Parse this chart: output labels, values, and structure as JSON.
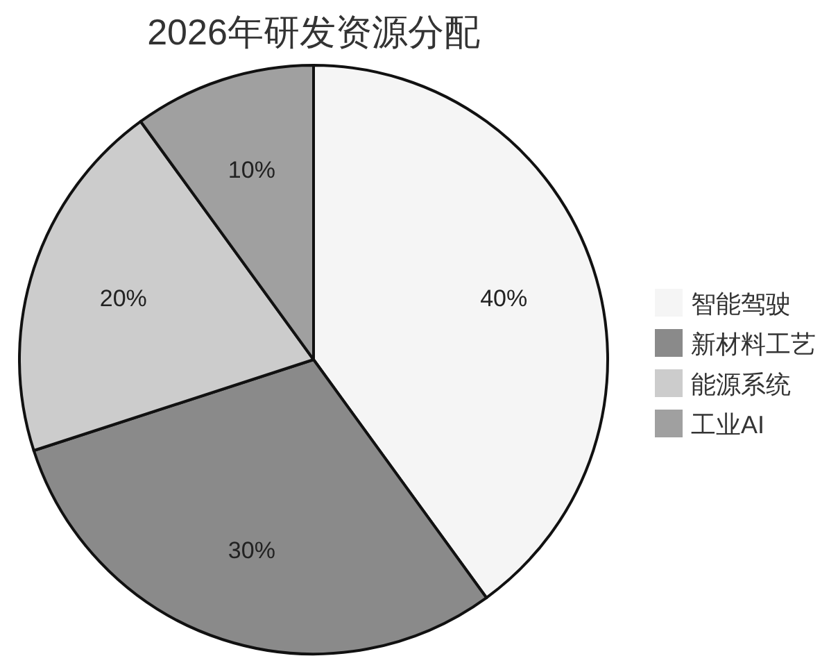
{
  "chart_data": {
    "type": "pie",
    "title": "2026年研发资源分配",
    "categories": [
      "智能驾驶",
      "新材料工艺",
      "能源系统",
      "工业AI"
    ],
    "values": [
      40,
      30,
      20,
      10
    ],
    "value_labels": [
      "40%",
      "30%",
      "20%",
      "10%"
    ],
    "colors": [
      "#f5f5f5",
      "#8a8a8a",
      "#cccccc",
      "#a0a0a0"
    ],
    "legend": "right"
  }
}
